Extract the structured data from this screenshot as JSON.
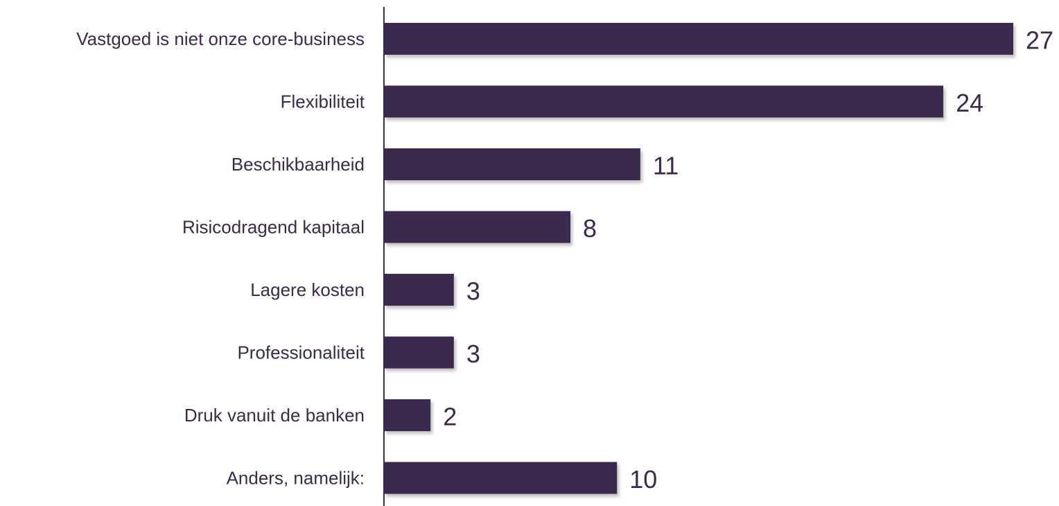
{
  "chart_data": {
    "type": "bar",
    "orientation": "horizontal",
    "categories": [
      "Vastgoed is niet onze core-business",
      "Flexibiliteit",
      "Beschikbaarheid",
      "Risicodragend kapitaal",
      "Lagere kosten",
      "Professionaliteit",
      "Druk vanuit de banken",
      "Anders, namelijk:"
    ],
    "values": [
      27,
      24,
      11,
      8,
      3,
      3,
      2,
      10
    ],
    "xlim": [
      0,
      27
    ],
    "title": "",
    "xlabel": "",
    "ylabel": "",
    "grid": false,
    "legend": "none",
    "data_labels": true
  },
  "colors": {
    "bar": "#3b2a4d",
    "bar_shadow": "#b9b9b9",
    "axis": "#3b2a4d",
    "category_text": "#3b2a4d",
    "value_text": "#3b2a4d",
    "background": "#ffffff"
  }
}
